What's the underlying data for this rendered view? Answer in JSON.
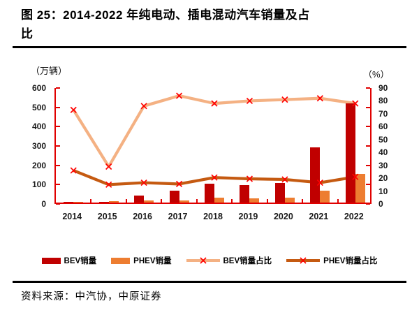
{
  "header": {
    "title_line1": "图 25：2014-2022 年纯电动、插电混动汽车销量及占",
    "title_line2": "比"
  },
  "footer": {
    "source": "资料来源：中汽协，中原证券"
  },
  "colors": {
    "axis": "#e00000",
    "bev_bar": "#c00000",
    "phev_bar": "#ed7d31",
    "bev_line": "#f4b183",
    "phev_line": "#c55a11",
    "marker": "#ff0000"
  },
  "chart_data": {
    "type": "bar",
    "subtype": "bar+line combo, dual axis",
    "categories": [
      "2014",
      "2015",
      "2016",
      "2017",
      "2018",
      "2019",
      "2020",
      "2021",
      "2022"
    ],
    "bar_series": [
      {
        "name": "BEV销量",
        "color": "#c00000",
        "axis": "left",
        "values": [
          2,
          5,
          37,
          62,
          97,
          92,
          100,
          286,
          515
        ]
      },
      {
        "name": "PHEV销量",
        "color": "#ed7d31",
        "axis": "left",
        "values": [
          3,
          6,
          12,
          12,
          27,
          23,
          24,
          60,
          150
        ]
      }
    ],
    "line_series": [
      {
        "name": "BEV销量占比",
        "color": "#f4b183",
        "axis": "right",
        "values": [
          73,
          29,
          76,
          84,
          78,
          80,
          81,
          82,
          78
        ]
      },
      {
        "name": "PHEV销量占比",
        "color": "#c55a11",
        "axis": "right",
        "values": [
          26,
          15,
          16.5,
          15.5,
          20.5,
          19.5,
          19,
          16.5,
          21
        ]
      }
    ],
    "left_axis": {
      "title": "（万辆）",
      "min": 0,
      "max": 600,
      "step": 100,
      "tick_labels": [
        "600",
        "500",
        "400",
        "300",
        "200",
        "100",
        "0"
      ]
    },
    "right_axis": {
      "title": "（%）",
      "min": 0,
      "max": 90,
      "step": 10,
      "tick_labels": [
        "90",
        "80",
        "70",
        "60",
        "50",
        "40",
        "30",
        "20",
        "10",
        "0"
      ]
    },
    "legend_position": "bottom",
    "grid": "off",
    "marker": {
      "shape": "x",
      "color": "#ff0000"
    }
  }
}
